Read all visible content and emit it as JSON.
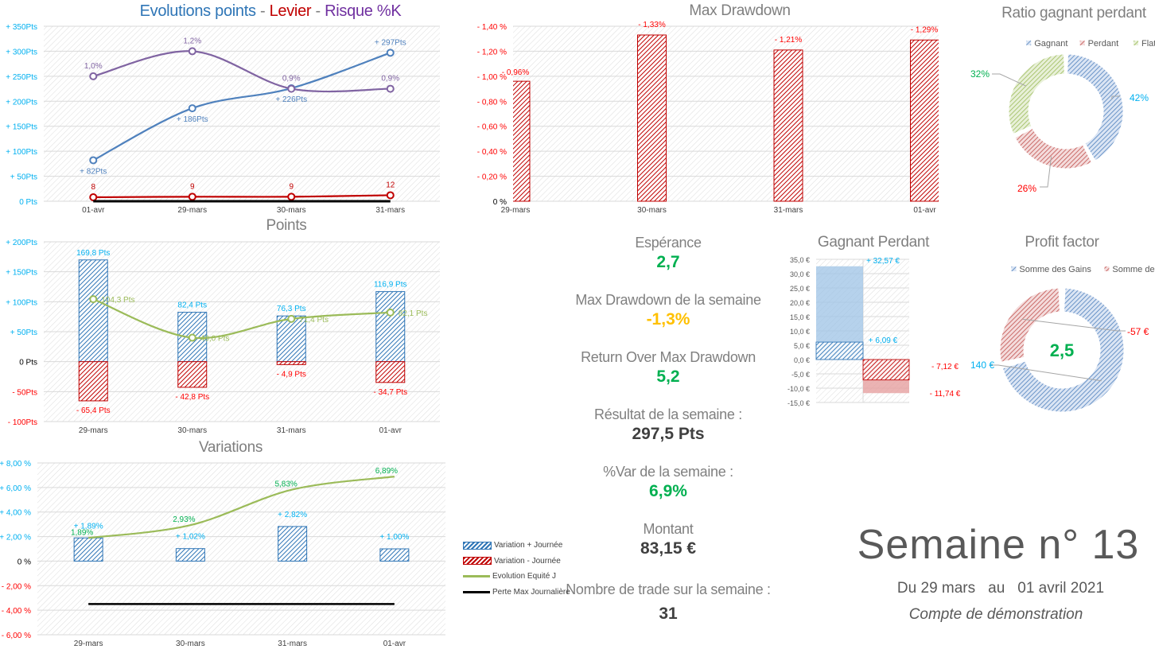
{
  "title_points": {
    "part1": "Evolutions points",
    "sep": " - ",
    "part2": "Levier",
    "part3": "Risque %K"
  },
  "colors": {
    "blue": "#4F81BD",
    "purple": "#8064A2",
    "red": "#C00000",
    "cyan": "#00B0F0",
    "green": "#00B050",
    "olive": "#9BBB59",
    "bright_red": "#FF0000",
    "amber": "#FFC000",
    "gray": "#7F7F7F",
    "dark": "#404040"
  },
  "kpis": [
    {
      "label": "Espérance",
      "value": "2,7",
      "color": "#00B050"
    },
    {
      "label": "Max Drawdown de la semaine",
      "value": "-1,3%",
      "color": "#FFC000"
    },
    {
      "label": "Return Over Max Drawdown",
      "value": "5,2",
      "color": "#00B050"
    },
    {
      "label": "Résultat de la semaine :",
      "value": "297,5 Pts",
      "color": "#404040"
    },
    {
      "label": "%Var de la semaine :",
      "value": "6,9%",
      "color": "#00B050"
    },
    {
      "label": "Montant",
      "value": "83,15 €",
      "color": "#404040"
    },
    {
      "label": "Nombre de trade sur la semaine :",
      "value": "31",
      "color": "#404040"
    }
  ],
  "week": {
    "title": "Semaine n° 13",
    "from_label": "Du 29 mars",
    "au": "au",
    "to_label": "01 avril 2021",
    "account": "Compte de démonstration"
  },
  "variations_legend": [
    "Variation + Journée",
    "Variation - Journée",
    "Evolution  Equité J",
    "Perte Max Journalière"
  ],
  "chart_data": [
    {
      "id": "evolution",
      "type": "line",
      "title": "Evolutions points - Levier - Risque %K",
      "categories": [
        "01-avr",
        "29-mars",
        "30-mars",
        "31-mars"
      ],
      "ylim": [
        0,
        350
      ],
      "yticks": [
        0,
        50,
        100,
        150,
        200,
        250,
        300,
        350
      ],
      "ytick_labels": [
        "0 Pts",
        "+ 50Pts",
        "+ 100Pts",
        "+ 150Pts",
        "+ 200Pts",
        "+ 250Pts",
        "+ 300Pts",
        "+ 350Pts"
      ],
      "series": [
        {
          "key": "points",
          "values": [
            82,
            186,
            226,
            297
          ],
          "labels": [
            "+ 82Pts",
            "+ 186Pts",
            "+ 226Pts",
            "+ 297Pts"
          ],
          "color": "#4F81BD"
        },
        {
          "key": "risque",
          "values": [
            1.0,
            1.2,
            0.9,
            0.9
          ],
          "labels": [
            "1,0%",
            "1,2%",
            "0,9%",
            "0,9%"
          ],
          "color": "#8064A2",
          "axis": "secondary"
        },
        {
          "key": "levier",
          "values": [
            8,
            9,
            9,
            12
          ],
          "labels": [
            "8",
            "9",
            "9",
            "12"
          ],
          "color": "#C00000"
        },
        {
          "key": "zero",
          "values": [
            0,
            0,
            0,
            0
          ],
          "color": "#000000"
        }
      ],
      "grid": true
    },
    {
      "id": "points",
      "type": "bar",
      "title": "Points",
      "categories": [
        "29-mars",
        "30-mars",
        "31-mars",
        "01-avr"
      ],
      "ylim": [
        -100,
        200
      ],
      "yticks": [
        -100,
        -50,
        0,
        50,
        100,
        150,
        200
      ],
      "ytick_labels": [
        "- 100Pts",
        "- 50Pts",
        "0 Pts",
        "+ 50Pts",
        "+ 100Pts",
        "+ 150Pts",
        "+ 200Pts"
      ],
      "series": [
        {
          "key": "gains",
          "values": [
            169.8,
            82.4,
            76.3,
            116.9
          ],
          "labels": [
            "169,8 Pts",
            "82,4 Pts",
            "76,3 Pts",
            "116,9 Pts"
          ],
          "color": "#00B0F0"
        },
        {
          "key": "pertes",
          "values": [
            -65.4,
            -42.8,
            -4.9,
            -34.7
          ],
          "labels": [
            "- 65,4 Pts",
            "- 42,8 Pts",
            "- 4,9 Pts",
            "- 34,7 Pts"
          ],
          "color": "#FF0000"
        },
        {
          "key": "moyenne",
          "type": "line",
          "values": [
            104.3,
            40.0,
            71.4,
            82.1
          ],
          "labels": [
            "104,3 Pts",
            "40,0 Pts",
            "71,4 Pts",
            "82,1 Pts"
          ],
          "color": "#9BBB59"
        }
      ],
      "grid": true
    },
    {
      "id": "variations",
      "type": "bar",
      "title": "Variations",
      "categories": [
        "29-mars",
        "30-mars",
        "31-mars",
        "01-avr"
      ],
      "ylim": [
        -6,
        8
      ],
      "yticks": [
        -6,
        -4,
        -2,
        0,
        2,
        4,
        6,
        8
      ],
      "ytick_labels": [
        "- 6,00 %",
        "- 4,00 %",
        "- 2,00 %",
        "0 %",
        "+ 2,00 %",
        "+ 4,00 %",
        "+ 6,00 %",
        "+ 8,00 %"
      ],
      "series": [
        {
          "name": "Variation + Journée",
          "values": [
            1.89,
            1.02,
            2.82,
            1.0
          ],
          "labels": [
            "+ 1,89%",
            "+ 1,02%",
            "+ 2,82%",
            "+ 1,00%"
          ],
          "color": "#00B0F0"
        },
        {
          "name": "Variation - Journée",
          "values": [
            0,
            0,
            0,
            0
          ],
          "color": "#FF0000"
        },
        {
          "name": "Evolution  Equité J",
          "type": "line",
          "values": [
            1.89,
            2.93,
            5.83,
            6.89
          ],
          "labels": [
            "1,89%",
            "2,93%",
            "5,83%",
            "6,89%"
          ],
          "color": "#9BBB59"
        },
        {
          "name": "Perte Max Journalière",
          "type": "line",
          "values": [
            -3.5,
            -3.5,
            -3.5,
            -3.5
          ],
          "color": "#000000"
        }
      ],
      "legend": "right",
      "grid": true
    },
    {
      "id": "maxdd",
      "type": "bar",
      "title": "Max Drawdown",
      "categories": [
        "29-mars",
        "30-mars",
        "31-mars",
        "01-avr"
      ],
      "ylim": [
        0,
        1.4
      ],
      "yticks": [
        0,
        0.2,
        0.4,
        0.6,
        0.8,
        1.0,
        1.2,
        1.4
      ],
      "ytick_labels": [
        "0 %",
        "- 0,20 %",
        "- 0,40 %",
        "- 0,60 %",
        "- 0,80 %",
        "- 1,00 %",
        "- 1,20 %",
        "- 1,40 %"
      ],
      "series": [
        {
          "values": [
            0.96,
            1.33,
            1.21,
            1.29
          ],
          "labels": [
            "- 0,96%",
            "- 1,33%",
            "- 1,21%",
            "- 1,29%"
          ],
          "color": "#FF0000"
        }
      ],
      "grid": true
    },
    {
      "id": "ratio",
      "type": "pie",
      "title": "Ratio gagnant perdant",
      "donut": true,
      "categories": [
        "Gagnant",
        "Perdant",
        "Flat"
      ],
      "values": [
        42,
        26,
        32
      ],
      "labels": [
        "42%",
        "26%",
        "32%"
      ],
      "colors": [
        "#4F81BD",
        "#C0504D",
        "#9BBB59"
      ],
      "label_colors": [
        "#00B0F0",
        "#FF0000",
        "#00B050"
      ],
      "legend": "top"
    },
    {
      "id": "gagnant_perdant",
      "type": "bar",
      "title": "Gagnant Perdant",
      "ylim": [
        -15,
        35
      ],
      "yticks": [
        -15,
        -10,
        -5,
        0,
        5,
        10,
        15,
        20,
        25,
        30,
        35
      ],
      "ytick_labels": [
        "-15,0 €",
        "-10,0 €",
        "-5,0 €",
        "0,0 €",
        "5,0 €",
        "10,0 €",
        "15,0 €",
        "20,0 €",
        "25,0 €",
        "30,0 €",
        "35,0 €"
      ],
      "series": [
        {
          "key": "gain_max",
          "values": [
            32.57
          ],
          "labels": [
            "+ 32,57 €"
          ],
          "color": "#9DC3E6"
        },
        {
          "key": "gain_moyen",
          "values": [
            6.09
          ],
          "labels": [
            "+ 6,09 €"
          ],
          "color": "#2E75B6"
        },
        {
          "key": "perte_moyenne",
          "values": [
            -7.12
          ],
          "labels": [
            "- 7,12 €"
          ],
          "color": "#C00000"
        },
        {
          "key": "perte_max",
          "values": [
            -11.74
          ],
          "labels": [
            "- 11,74 €"
          ],
          "color": "#E6A0A0"
        }
      ],
      "grid": true
    },
    {
      "id": "profit_factor",
      "type": "pie",
      "title": "Profit factor",
      "donut": true,
      "categories": [
        "Somme des Gains",
        "Somme des Pertes"
      ],
      "values": [
        140,
        57
      ],
      "labels": [
        "140 €",
        "-57 €"
      ],
      "colors": [
        "#4F81BD",
        "#C0504D"
      ],
      "label_colors": [
        "#00B0F0",
        "#FF0000"
      ],
      "center_value": "2,5",
      "center_color": "#00B050",
      "legend": "top"
    }
  ]
}
